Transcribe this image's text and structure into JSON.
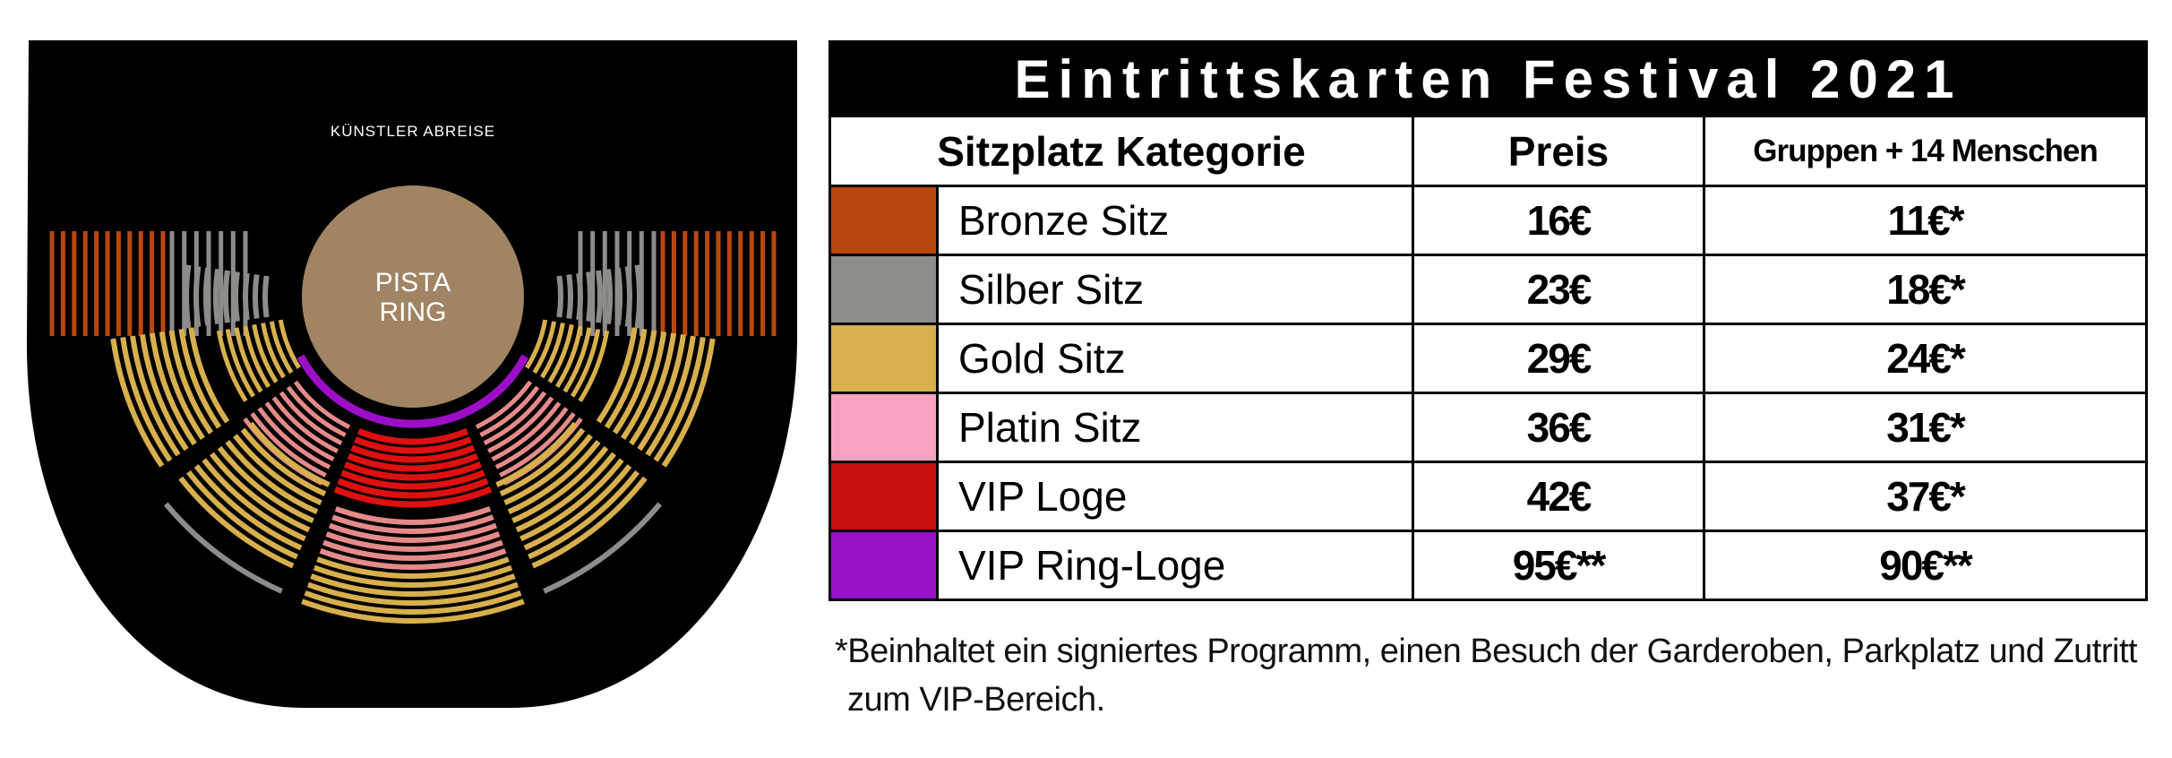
{
  "seatmap": {
    "stage_label": "KÜNSTLER ABREISE",
    "ring_label_1": "PISTA",
    "ring_label_2": "RING",
    "colors": {
      "background": "#000000",
      "ring": "#a08464",
      "bronze": "#b8470f",
      "silver": "#8e8c89",
      "gold": "#d7b04d",
      "platin": "#e58a8a",
      "vip": "#e01010",
      "vip_ring": "#9d0ec7"
    }
  },
  "table": {
    "title": "Eintrittskarten Festival 2021",
    "headers": {
      "category": "Sitzplatz Kategorie",
      "price": "Preis",
      "group": "Gruppen + 14 Menschen"
    },
    "rows": [
      {
        "name": "Bronze Sitz",
        "price": "16€",
        "group": "11€*",
        "color": "#b8470f"
      },
      {
        "name": "Silber Sitz",
        "price": "23€",
        "group": "18€*",
        "color": "#8e8c89"
      },
      {
        "name": "Gold Sitz",
        "price": "29€",
        "group": "24€*",
        "color": "#d7b04d"
      },
      {
        "name": "Platin Sitz",
        "price": "36€",
        "group": "31€*",
        "color": "#f9a2c5"
      },
      {
        "name": "VIP Loge",
        "price": "42€",
        "group": "37€*",
        "color": "#c81010"
      },
      {
        "name": "VIP Ring-Loge",
        "price": "95€**",
        "group": "90€**",
        "color": "#9812c8"
      }
    ]
  },
  "footnote": "*Beinhaltet ein signiertes Programm, einen Besuch der Garderoben, Parkplatz und Zutritt zum VIP-Bereich."
}
